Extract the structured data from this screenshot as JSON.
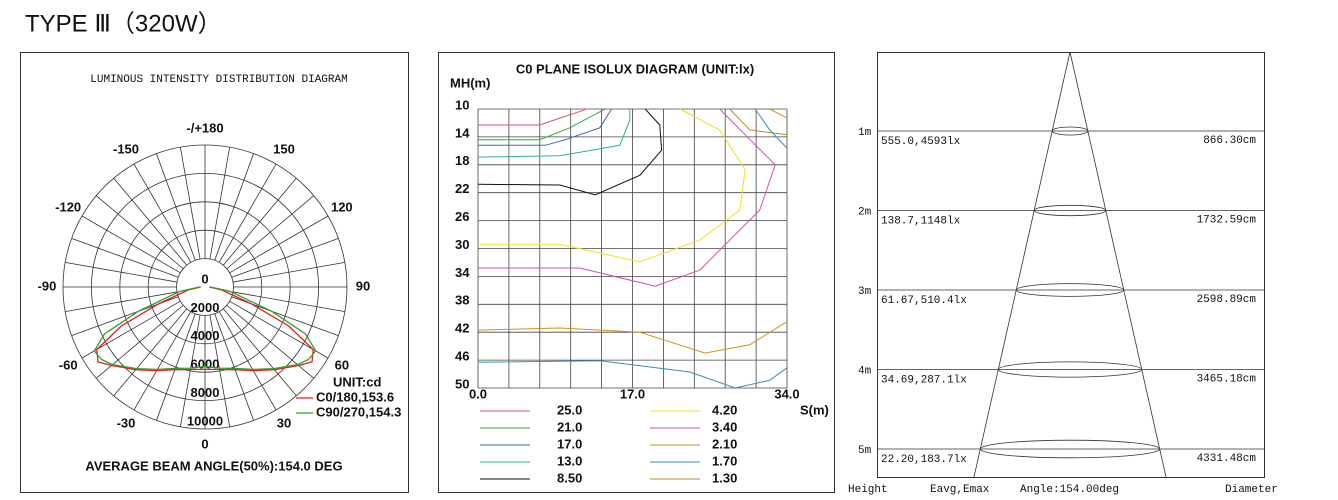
{
  "title": "TYPE Ⅲ（320W）",
  "chart_data": [
    {
      "type": "polar",
      "title": "LUMINOUS INTENSITY DISTRIBUTION DIAGRAM",
      "unit_label": "UNIT:cd",
      "caption": "AVERAGE BEAM ANGLE(50%):154.0 DEG",
      "rlim": [
        0,
        10000
      ],
      "rticks": [
        0,
        2000,
        4000,
        6000,
        8000,
        10000
      ],
      "angle_ticks": [
        {
          "value": 180,
          "label": "-/+180"
        },
        150,
        120,
        90,
        60,
        30,
        0,
        -30,
        -60,
        -90,
        -120,
        -150
      ],
      "x": [
        -90,
        -80,
        -70,
        -65,
        -60,
        -55,
        -50,
        -40,
        -30,
        -20,
        -10,
        0,
        10,
        20,
        30,
        40,
        50,
        55,
        60,
        65,
        70,
        80,
        90
      ],
      "series": [
        {
          "name": "C0/180,153.6",
          "color": "#e02020",
          "values": [
            300,
            1200,
            3500,
            6500,
            8800,
            9200,
            8600,
            7600,
            6800,
            6200,
            5900,
            5800,
            5900,
            6200,
            6800,
            7600,
            8600,
            9200,
            8800,
            6500,
            3500,
            1200,
            300
          ]
        },
        {
          "name": "C90/270,154.3",
          "color": "#30a030",
          "values": [
            400,
            1800,
            5000,
            7800,
            9000,
            8900,
            8500,
            7500,
            6700,
            6100,
            5800,
            5600,
            5800,
            6100,
            6700,
            7500,
            8500,
            8900,
            9000,
            7800,
            5000,
            1800,
            400
          ]
        }
      ]
    },
    {
      "type": "contour",
      "title": "C0 PLANE ISOLUX DIAGRAM (UNIT:lx)",
      "ylabel": "MH(m)",
      "xlabel": "S(m)",
      "xlim": [
        0,
        34
      ],
      "ylim": [
        10,
        50
      ],
      "y_inverted": true,
      "xticks": [
        {
          "value": 0,
          "label": "0.0"
        },
        {
          "value": 17,
          "label": "17.0"
        },
        {
          "value": 34,
          "label": "34.0"
        }
      ],
      "yticks": [
        10,
        14,
        18,
        22,
        26,
        30,
        34,
        38,
        42,
        46,
        50
      ],
      "grid": true,
      "series": [
        {
          "name": "25.0",
          "color": "#e05070",
          "x": [
            0,
            6.8,
            9.0,
            11.8
          ],
          "y": [
            12.3,
            12.3,
            11.3,
            10.1
          ]
        },
        {
          "name": "21.0",
          "color": "#3aa63a",
          "x": [
            0,
            6.8,
            10.1,
            13.4,
            14
          ],
          "y": [
            14.4,
            14.4,
            12.7,
            10.4,
            10
          ]
        },
        {
          "name": "17.0",
          "color": "#3a6ab0",
          "x": [
            0,
            7.4,
            9.6,
            13.4,
            14.7
          ],
          "y": [
            15.2,
            15.2,
            14.4,
            12.7,
            10
          ]
        },
        {
          "name": "13.0",
          "color": "#30b0a0",
          "x": [
            0,
            9,
            15.6,
            16.7,
            16.7
          ],
          "y": [
            16.9,
            16.7,
            15.2,
            11.6,
            10
          ]
        },
        {
          "name": "8.50",
          "color": "#111111",
          "x": [
            0,
            9,
            12.9,
            17.8,
            20.2,
            20,
            18.4
          ],
          "y": [
            20.8,
            20.9,
            22.3,
            19.5,
            15.9,
            12.3,
            10
          ]
        },
        {
          "name": "4.20",
          "color": "#f0e020",
          "x": [
            0,
            9,
            17.8,
            24.4,
            28.8,
            29.4,
            26.6,
            22.2
          ],
          "y": [
            29.4,
            29.4,
            31.9,
            28.8,
            24.5,
            18.7,
            13,
            10
          ]
        },
        {
          "name": "3.40",
          "color": "#d050b0",
          "x": [
            0,
            11.2,
            19.5,
            24.4,
            31,
            32.7,
            29.4,
            26.6
          ],
          "y": [
            32.8,
            32.8,
            35.4,
            33.1,
            24.5,
            18,
            13.7,
            10
          ]
        },
        {
          "name": "2.10",
          "color": "#d09020",
          "x": [
            0,
            9,
            17.8,
            25,
            29.9,
            34,
            null,
            32.1,
            34
          ],
          "y": [
            41.7,
            41.4,
            42,
            45,
            43.8,
            40.5,
            null,
            10,
            11.3
          ]
        },
        {
          "name": "1.70",
          "color": "#3a90b0",
          "x": [
            0,
            13.4,
            23.3,
            28.3,
            32.1,
            34,
            null,
            30.5,
            32.1,
            34
          ],
          "y": [
            46.3,
            46.1,
            47.7,
            50,
            48.9,
            47.1,
            null,
            10,
            13,
            15.6
          ]
        },
        {
          "name": "1.30",
          "color": "#b09030",
          "x": [
            27.7,
            29.9,
            34
          ],
          "y": [
            10,
            13,
            13.7
          ]
        }
      ]
    }
  ],
  "beam": {
    "rows": [
      {
        "height": "1m",
        "values": "555.0,4593lx",
        "diameter": "866.30cm"
      },
      {
        "height": "2m",
        "values": "138.7,1148lx",
        "diameter": "1732.59cm"
      },
      {
        "height": "3m",
        "values": "61.67,510.4lx",
        "diameter": "2598.89cm"
      },
      {
        "height": "4m",
        "values": "34.69,287.1lx",
        "diameter": "3465.18cm"
      },
      {
        "height": "5m",
        "values": "22.20,183.7lx",
        "diameter": "4331.48cm"
      }
    ],
    "headers": [
      "Height",
      "Eavg,Emax",
      "Angle:154.00deg",
      "Diameter"
    ]
  }
}
